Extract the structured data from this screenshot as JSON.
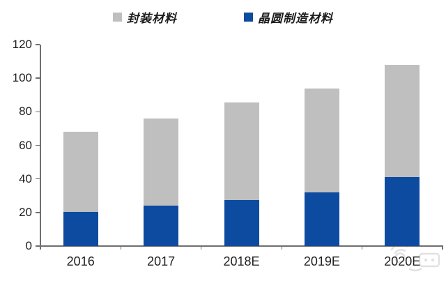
{
  "chart": {
    "legend": [
      {
        "key": "packaging-materials",
        "label": "封装材料",
        "color": "#bfbfbf"
      },
      {
        "key": "wafer-materials",
        "label": "晶圆制造材料",
        "color": "#0d4ba0"
      }
    ]
  },
  "chart_data": {
    "type": "bar",
    "stacked": true,
    "title": "",
    "xlabel": "",
    "ylabel": "",
    "categories": [
      "2016",
      "2017",
      "2018E",
      "2019E",
      "2020E"
    ],
    "series": [
      {
        "key": "wafer-materials",
        "name": "晶圆制造材料",
        "color": "#0d4ba0",
        "values": [
          20.5,
          24,
          27.5,
          32,
          41
        ]
      },
      {
        "key": "packaging-materials",
        "name": "封装材料",
        "color": "#bfbfbf",
        "values": [
          47.5,
          52,
          58,
          62,
          67
        ]
      }
    ],
    "totals": [
      68,
      76,
      85.5,
      94,
      108
    ],
    "ylim": [
      0,
      120
    ],
    "yticks": [
      0,
      20,
      40,
      60,
      80,
      100,
      120
    ],
    "grid": false,
    "legend_position": "top"
  },
  "colors": {
    "axis": "#6f6f6f",
    "tick_label": "#1f1f1f",
    "watermark": "#c9c9c9"
  }
}
